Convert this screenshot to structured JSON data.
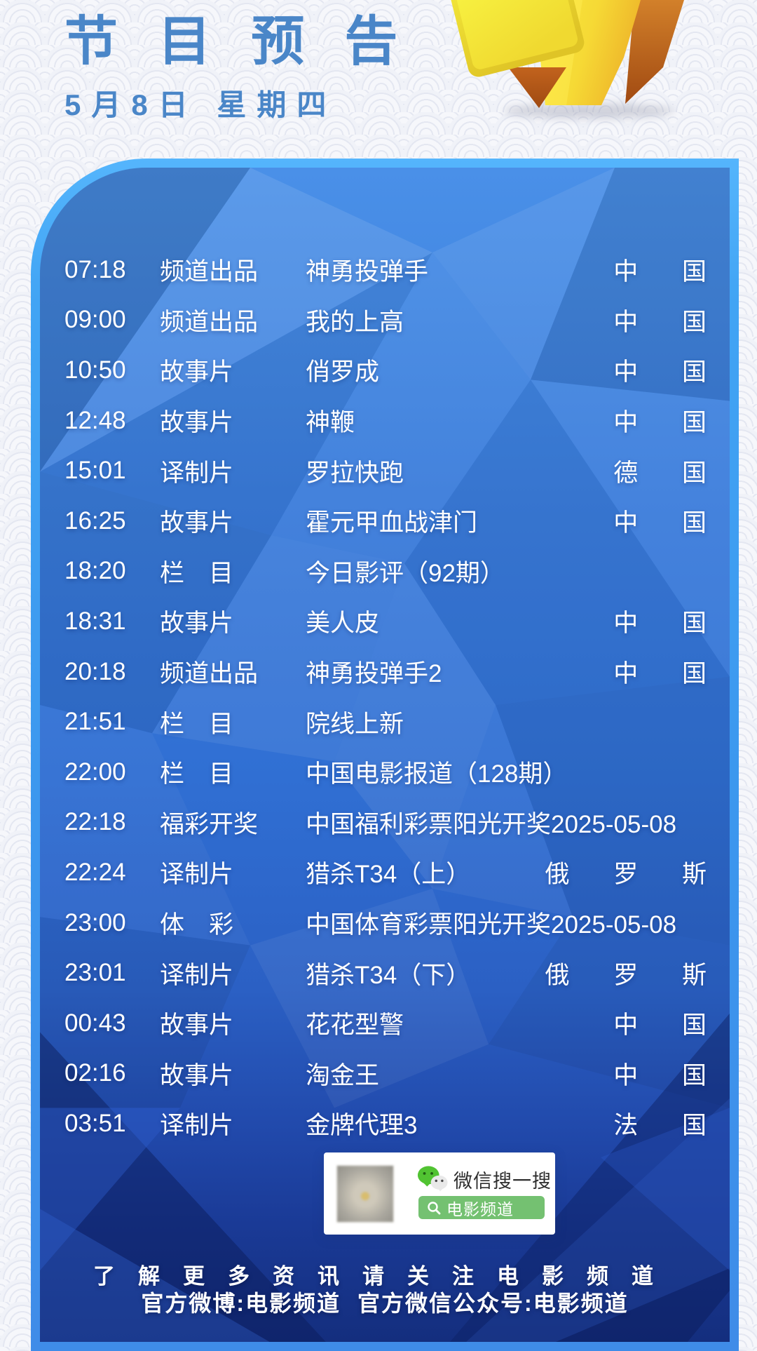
{
  "header": {
    "title": "节 目 预 告",
    "date": "5月8日  星期四"
  },
  "schedule": {
    "rows": [
      {
        "time": "07:18",
        "category": "频道出品",
        "title": "神勇投弹手",
        "country": "中 国"
      },
      {
        "time": "09:00",
        "category": "频道出品",
        "title": "我的上高",
        "country": "中 国"
      },
      {
        "time": "10:50",
        "category": "故事片",
        "title": "俏罗成",
        "country": "中 国"
      },
      {
        "time": "12:48",
        "category": "故事片",
        "title": "神鞭",
        "country": "中 国"
      },
      {
        "time": "15:01",
        "category": "译制片",
        "title": "罗拉快跑",
        "country": "德 国"
      },
      {
        "time": "16:25",
        "category": "故事片",
        "title": "霍元甲血战津门",
        "country": "中 国"
      },
      {
        "time": "18:20",
        "category": "栏　目",
        "title": "今日影评（92期）",
        "country": ""
      },
      {
        "time": "18:31",
        "category": "故事片",
        "title": "美人皮",
        "country": "中 国"
      },
      {
        "time": "20:18",
        "category": "频道出品",
        "title": "神勇投弹手2",
        "country": "中 国"
      },
      {
        "time": "21:51",
        "category": "栏　目",
        "title": "院线上新",
        "country": ""
      },
      {
        "time": "22:00",
        "category": "栏　目",
        "title": "中国电影报道（128期）",
        "country": ""
      },
      {
        "time": "22:18",
        "category": "福彩开奖",
        "title": "中国福利彩票阳光开奖2025-05-08",
        "country": ""
      },
      {
        "time": "22:24",
        "category": "译制片",
        "title": "猎杀T34（上）",
        "country": "俄 罗 斯"
      },
      {
        "time": "23:00",
        "category": "体　彩",
        "title": "中国体育彩票阳光开奖2025-05-08",
        "country": ""
      },
      {
        "time": "23:01",
        "category": "译制片",
        "title": "猎杀T34（下）",
        "country": "俄 罗 斯"
      },
      {
        "time": "00:43",
        "category": "故事片",
        "title": "花花型警",
        "country": "中 国"
      },
      {
        "time": "02:16",
        "category": "故事片",
        "title": "淘金王",
        "country": "中 国"
      },
      {
        "time": "03:51",
        "category": "译制片",
        "title": "金牌代理3",
        "country": "法 国"
      }
    ]
  },
  "wechat": {
    "brand_label": "微信搜一搜",
    "search_term": "电影频道"
  },
  "footer": {
    "line1": "了解更多资讯请关注电影频道",
    "weibo": "官方微博:电影频道",
    "wechat_official": "官方微信公众号:电影频道"
  },
  "colors": {
    "header_blue": "#4a86c8",
    "panel_border": "#41a4f4",
    "panel_deep": "#142e7e",
    "wechat_green": "#51c332",
    "pill_green": "#74c171",
    "gold": "#f2d234"
  }
}
